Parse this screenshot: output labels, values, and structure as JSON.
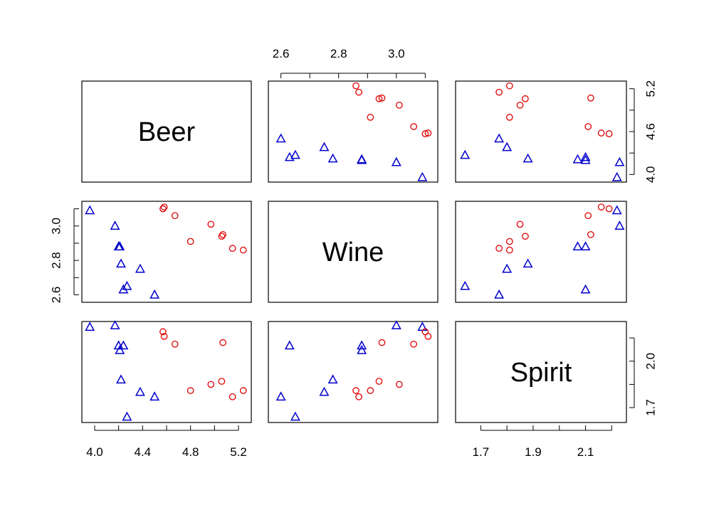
{
  "chart_data": {
    "type": "scatter",
    "variables": [
      "Beer",
      "Wine",
      "Spirit"
    ],
    "ranges": {
      "Beer": [
        3.95,
        5.25
      ],
      "Wine": [
        2.58,
        3.12
      ],
      "Spirit": [
        1.63,
        2.23
      ]
    },
    "ticks": {
      "Beer": [
        "4.0",
        "4.4",
        "4.8",
        "5.2"
      ],
      "Wine": [
        "2.6",
        "2.8",
        "3.0"
      ],
      "Spirit": [
        "1.7",
        "1.9",
        "2.1"
      ]
    },
    "side_ticks": {
      "Beer": [
        "4.0",
        "4.6",
        "5.2"
      ],
      "Wine": [
        "2.6",
        "2.8",
        "3.0"
      ],
      "Spirit": [
        "1.7",
        "2.0"
      ]
    },
    "series": [
      {
        "marker": "triangle",
        "color": "#0000CD",
        "points": [
          {
            "Beer": 3.96,
            "Wine": 3.09,
            "Spirit": 2.22
          },
          {
            "Beer": 4.17,
            "Wine": 3.0,
            "Spirit": 2.23
          },
          {
            "Beer": 4.2,
            "Wine": 2.88,
            "Spirit": 2.1
          },
          {
            "Beer": 4.21,
            "Wine": 2.88,
            "Spirit": 2.07
          },
          {
            "Beer": 4.22,
            "Wine": 2.78,
            "Spirit": 1.88
          },
          {
            "Beer": 4.24,
            "Wine": 2.63,
            "Spirit": 2.1
          },
          {
            "Beer": 4.27,
            "Wine": 2.65,
            "Spirit": 1.64
          },
          {
            "Beer": 4.38,
            "Wine": 2.75,
            "Spirit": 1.8
          },
          {
            "Beer": 4.5,
            "Wine": 2.6,
            "Spirit": 1.77
          }
        ]
      },
      {
        "marker": "circle",
        "color": "#E00000",
        "points": [
          {
            "Beer": 4.57,
            "Wine": 3.1,
            "Spirit": 2.19
          },
          {
            "Beer": 4.58,
            "Wine": 3.11,
            "Spirit": 2.16
          },
          {
            "Beer": 4.67,
            "Wine": 3.06,
            "Spirit": 2.11
          },
          {
            "Beer": 4.8,
            "Wine": 2.91,
            "Spirit": 1.81
          },
          {
            "Beer": 4.97,
            "Wine": 3.01,
            "Spirit": 1.85
          },
          {
            "Beer": 5.06,
            "Wine": 2.94,
            "Spirit": 1.87
          },
          {
            "Beer": 5.07,
            "Wine": 2.95,
            "Spirit": 2.12
          },
          {
            "Beer": 5.15,
            "Wine": 2.87,
            "Spirit": 1.77
          },
          {
            "Beer": 5.24,
            "Wine": 2.86,
            "Spirit": 1.81
          }
        ]
      }
    ]
  }
}
